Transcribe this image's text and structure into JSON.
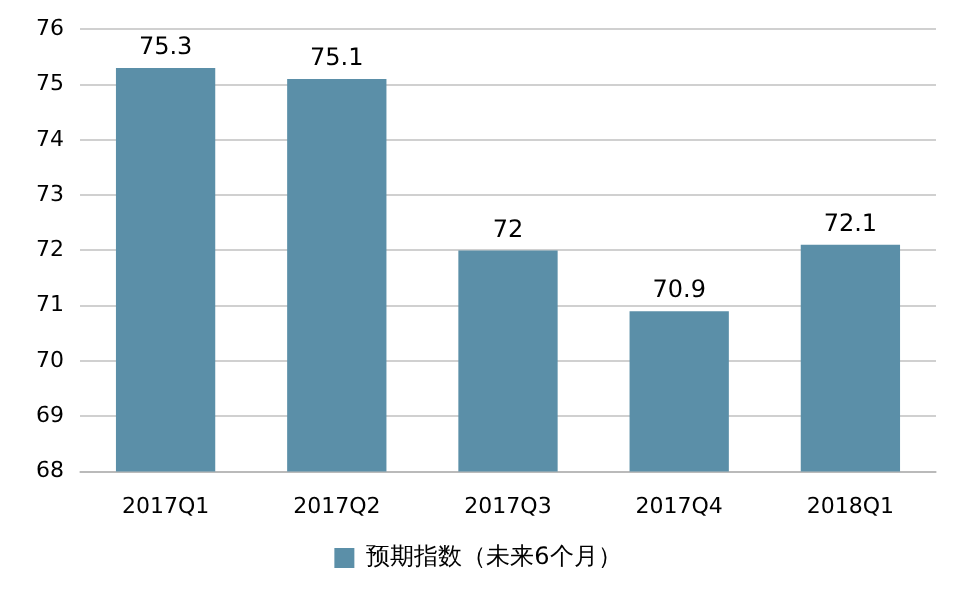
{
  "chart_data": {
    "type": "bar",
    "categories": [
      "2017Q1",
      "2017Q2",
      "2017Q3",
      "2017Q4",
      "2018Q1"
    ],
    "series": [
      {
        "name": "预期指数（未来6个月）",
        "color": "#5b8fa8",
        "values": [
          75.3,
          75.1,
          72,
          70.9,
          72.1
        ]
      }
    ],
    "ylim": [
      68,
      76
    ],
    "yticks": [
      68,
      69,
      70,
      71,
      72,
      73,
      74,
      75,
      76
    ],
    "grid": "y",
    "legend": "bottom",
    "data_labels": true
  }
}
